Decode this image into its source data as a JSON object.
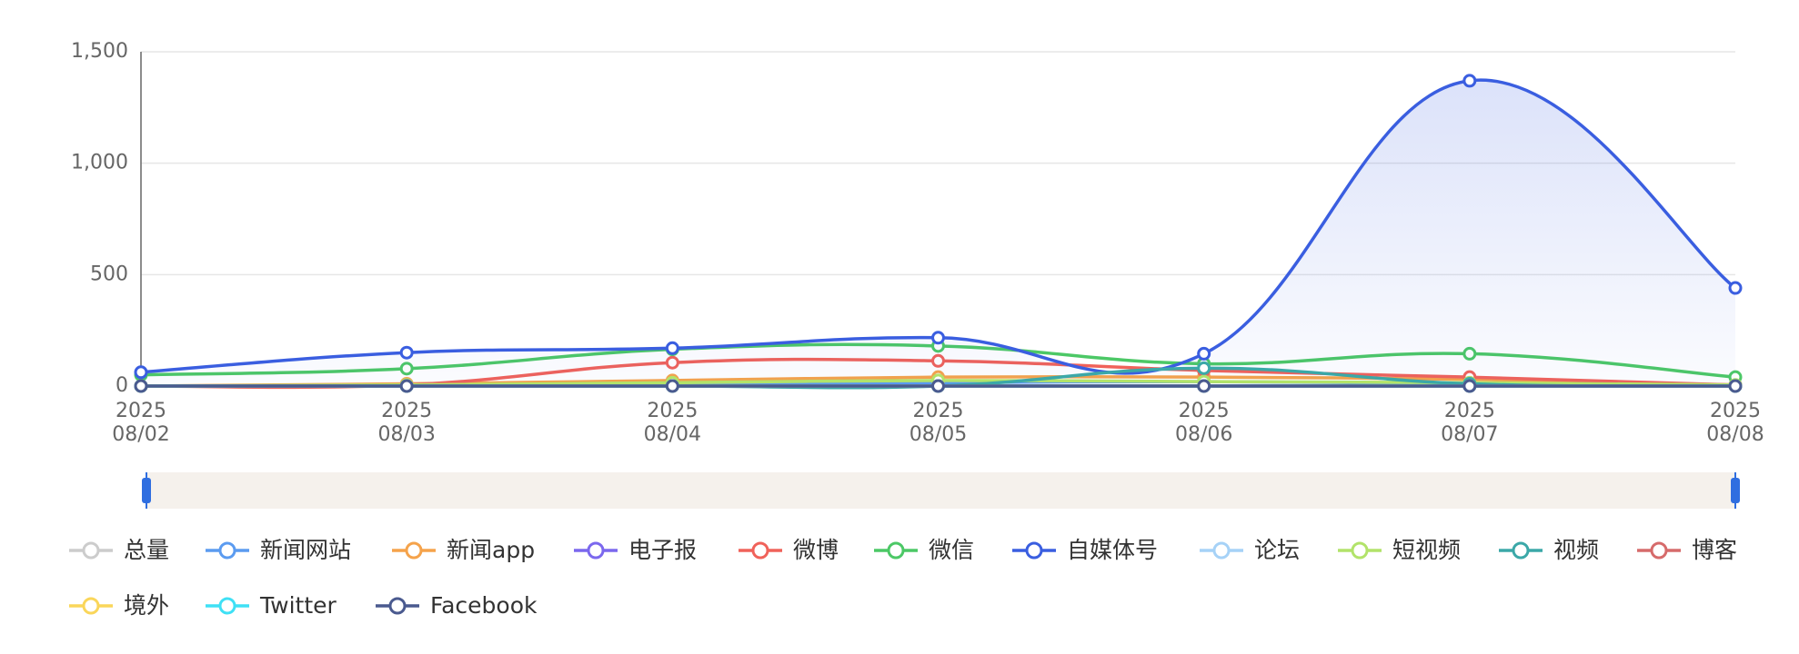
{
  "chart_data": {
    "type": "line",
    "smooth": true,
    "categories": [
      "2025\n08/02",
      "2025\n08/03",
      "2025\n08/04",
      "2025\n08/05",
      "2025\n08/06",
      "2025\n08/07",
      "2025\n08/08"
    ],
    "ylim": [
      0,
      1500
    ],
    "yticks": [
      0,
      500,
      {
        "value": 1000,
        "label": "1,000"
      },
      {
        "value": 1500,
        "label": "1,500"
      }
    ],
    "grid": true,
    "series": [
      {
        "name": "总量",
        "color": "#cccccc",
        "hidden": true
      },
      {
        "name": "新闻网站",
        "color": "#5b9bf0",
        "values": [
          0,
          5,
          10,
          15,
          20,
          10,
          2
        ]
      },
      {
        "name": "新闻app",
        "color": "#f5a34b",
        "values": [
          0,
          10,
          25,
          40,
          40,
          30,
          5
        ]
      },
      {
        "name": "电子报",
        "color": "#7b68ee",
        "values": [
          0,
          0,
          0,
          0,
          0,
          0,
          0
        ]
      },
      {
        "name": "微博",
        "color": "#f0625a",
        "values": [
          0,
          5,
          105,
          113,
          70,
          40,
          5
        ]
      },
      {
        "name": "微信",
        "color": "#4cc866",
        "values": [
          50,
          78,
          165,
          180,
          100,
          145,
          40
        ]
      },
      {
        "name": "自媒体号",
        "color": "#3a5ee0",
        "area": true,
        "values": [
          62,
          150,
          170,
          217,
          145,
          1370,
          440
        ]
      },
      {
        "name": "论坛",
        "color": "#a6d2f7",
        "values": [
          0,
          0,
          0,
          0,
          0,
          0,
          0
        ]
      },
      {
        "name": "短视频",
        "color": "#b2e36a",
        "values": [
          0,
          5,
          15,
          25,
          20,
          15,
          5
        ]
      },
      {
        "name": "视频",
        "color": "#3ba8a8",
        "values": [
          0,
          0,
          0,
          0,
          80,
          10,
          0
        ]
      },
      {
        "name": "博客",
        "color": "#d66b6b",
        "values": [
          0,
          0,
          0,
          0,
          0,
          0,
          0
        ]
      },
      {
        "name": "境外",
        "color": "#fad65a",
        "values": [
          0,
          0,
          0,
          0,
          0,
          0,
          0
        ]
      },
      {
        "name": "Twitter",
        "color": "#3fe0f5",
        "values": [
          0,
          0,
          0,
          0,
          0,
          0,
          0
        ]
      },
      {
        "name": "Facebook",
        "color": "#4a5a8f",
        "values": [
          0,
          0,
          0,
          0,
          0,
          0,
          0
        ]
      }
    ]
  }
}
